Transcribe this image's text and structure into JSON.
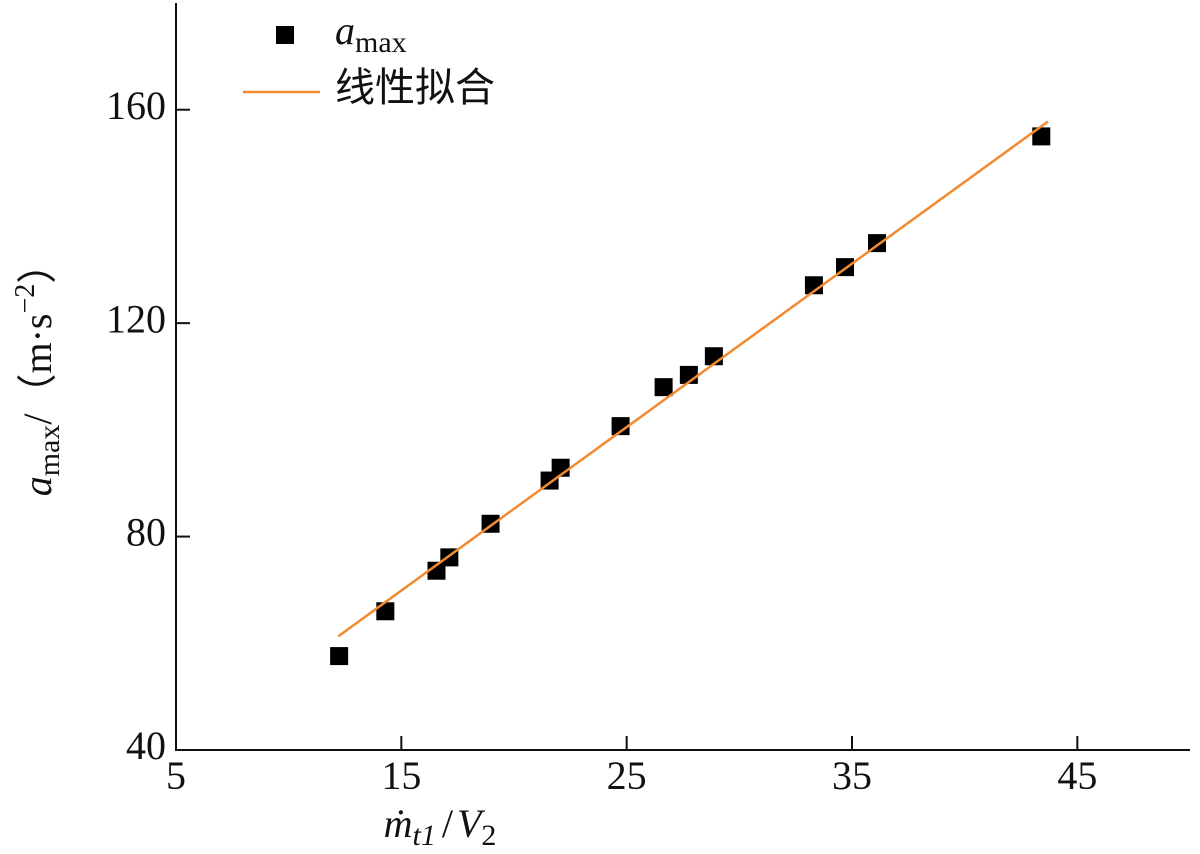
{
  "chart_data": {
    "type": "scatter",
    "xlabel": [
      "ṁ",
      "t1",
      "/",
      "V",
      "2"
    ],
    "ylabel": [
      "a",
      "max",
      "/（m·s",
      "−2",
      "）"
    ],
    "xlim": [
      5,
      50
    ],
    "ylim": [
      40,
      180
    ],
    "xticks": [
      5,
      15,
      25,
      35,
      45
    ],
    "yticks": [
      40,
      80,
      120,
      160
    ],
    "series": [
      {
        "name": "amax",
        "type": "scatter",
        "color": "#000000",
        "x": [
          12.24,
          14.29,
          16.56,
          17.13,
          18.96,
          21.58,
          22.07,
          24.73,
          26.64,
          27.76,
          28.87,
          33.31,
          34.69,
          36.11,
          43.4
        ],
        "values": [
          57.6,
          66.0,
          73.6,
          76.1,
          82.4,
          90.5,
          92.9,
          100.7,
          108.0,
          110.3,
          113.8,
          127.1,
          130.5,
          135.0,
          155.0
        ]
      },
      {
        "name": "线性拟合",
        "type": "line",
        "color": "#f28a30",
        "x": [
          12.2,
          43.7
        ],
        "values": [
          61.3,
          157.8
        ]
      }
    ]
  }
}
